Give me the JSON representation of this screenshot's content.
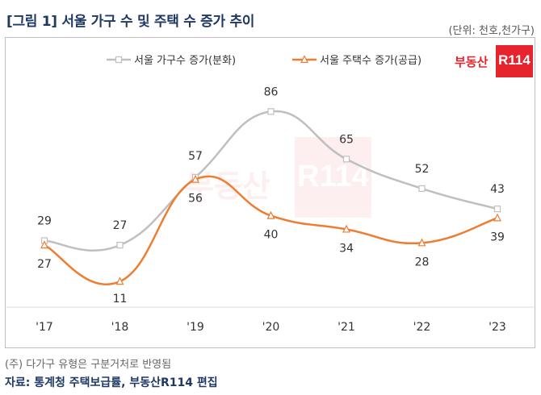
{
  "header": {
    "title": "[그림 1] 서울 가구 수 및 주택 수 증가 추이",
    "unit": "(단위: 천호,천가구)"
  },
  "brand": {
    "text": "부동산",
    "box": "R114"
  },
  "footer": {
    "note": "(주) 다가구 유형은 구분거처로 반영됨",
    "source": "자료: 통계청 주택보급률, 부동산R114 편집"
  },
  "chart_data": {
    "type": "line",
    "categories": [
      "'17",
      "'18",
      "'19",
      "'20",
      "'21",
      "'22",
      "'23"
    ],
    "series": [
      {
        "name": "서울 가구수 증가(분화)",
        "values": [
          29,
          27,
          57,
          86,
          65,
          52,
          43
        ],
        "color": "#bfbfbf",
        "marker": "square"
      },
      {
        "name": "서울 주택수 증가(공급)",
        "values": [
          27,
          11,
          56,
          40,
          34,
          28,
          39
        ],
        "color": "#ed7d31",
        "marker": "triangle"
      }
    ],
    "ylim": [
      0,
      100
    ],
    "legend_position": "top",
    "grid": false,
    "smooth": true
  }
}
